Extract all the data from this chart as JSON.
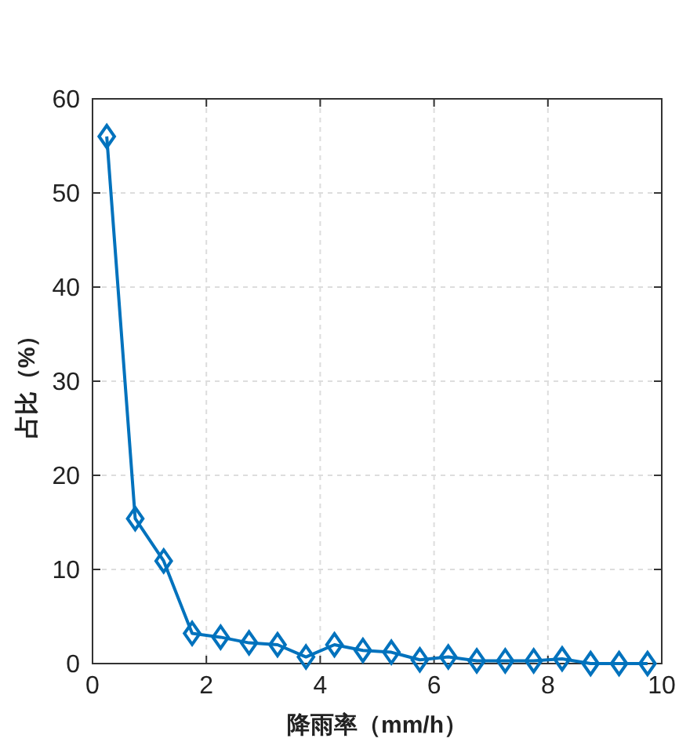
{
  "chart_data": {
    "type": "line",
    "xlabel": "降雨率（mm/h）",
    "ylabel": "占比（%）",
    "x": [
      0.25,
      0.75,
      1.25,
      1.75,
      2.25,
      2.75,
      3.25,
      3.75,
      4.25,
      4.75,
      5.25,
      5.75,
      6.25,
      6.75,
      7.25,
      7.75,
      8.25,
      8.75,
      9.25,
      9.75
    ],
    "series": [
      {
        "color": "#0072bd",
        "values": [
          56.0,
          15.4,
          10.9,
          3.2,
          2.8,
          2.2,
          2.0,
          0.7,
          2.0,
          1.4,
          1.2,
          0.4,
          0.7,
          0.3,
          0.3,
          0.3,
          0.5,
          0,
          0,
          0
        ]
      }
    ],
    "xlim": [
      0,
      10
    ],
    "ylim": [
      0,
      60
    ],
    "xticks": [
      0,
      2,
      4,
      6,
      8,
      10
    ],
    "yticks": [
      0,
      10,
      20,
      30,
      40,
      50,
      60
    ],
    "grid": true,
    "marker": "diamond",
    "line_style": "solid"
  }
}
